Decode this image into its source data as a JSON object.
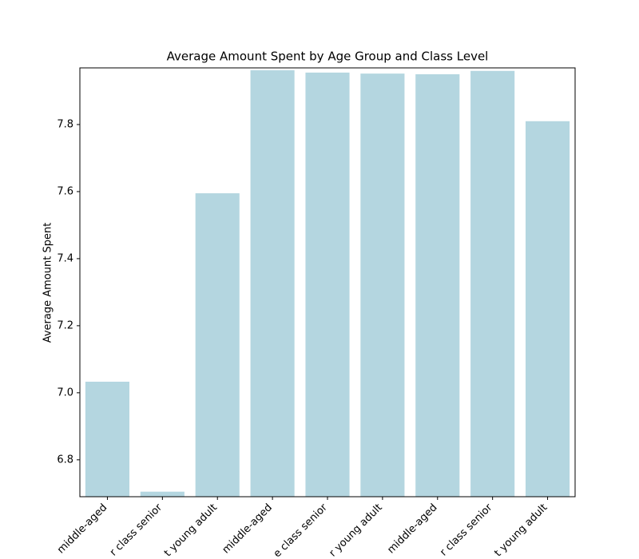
{
  "chart_data": {
    "type": "bar",
    "title": "Average Amount Spent by Age Group and Class Level",
    "y_label": "Average Amount Spent",
    "categories": [
      "middle-aged",
      "r class senior",
      "t young adult",
      "middle-aged",
      "e class senior",
      "r young adult",
      "middle-aged",
      "r class senior",
      "t young adult"
    ],
    "values": [
      7.033,
      6.705,
      7.595,
      7.962,
      7.955,
      7.952,
      7.95,
      7.96,
      7.81
    ],
    "color": "#b4d6e0",
    "ylim": [
      6.69,
      7.969
    ],
    "yticks": [
      {
        "value": 6.8,
        "label": "6.8"
      },
      {
        "value": 7.0,
        "label": "7.0"
      },
      {
        "value": 7.2,
        "label": "7.2"
      },
      {
        "value": 7.4,
        "label": "7.4"
      },
      {
        "value": 7.6,
        "label": "7.6"
      },
      {
        "value": 7.8,
        "label": "7.8"
      }
    ],
    "grid": false
  }
}
